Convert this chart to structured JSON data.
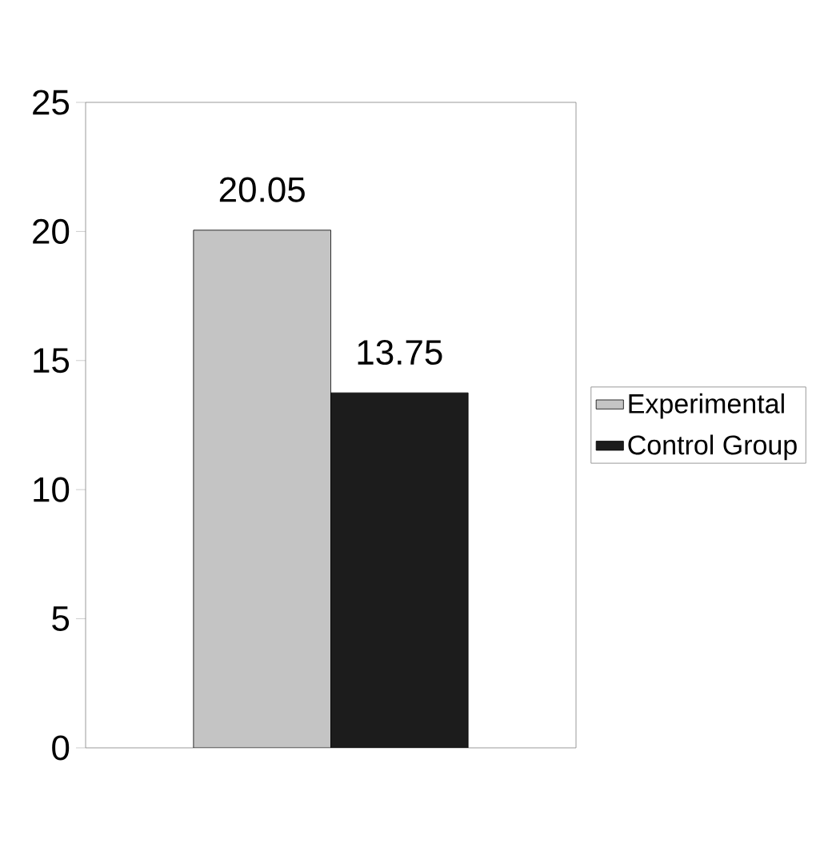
{
  "chart_data": {
    "type": "bar",
    "categories": [
      null
    ],
    "series": [
      {
        "name": "Experimental",
        "color": "#c4c4c4",
        "values": [
          20.05
        ],
        "value_labels": [
          "20.05"
        ]
      },
      {
        "name": "Control Group",
        "color": "#1c1c1c",
        "values": [
          13.75
        ],
        "value_labels": [
          "13.75"
        ]
      }
    ],
    "ylim": [
      0,
      25
    ],
    "yticks": [
      0,
      5,
      10,
      15,
      20,
      25
    ],
    "legend": "right"
  }
}
